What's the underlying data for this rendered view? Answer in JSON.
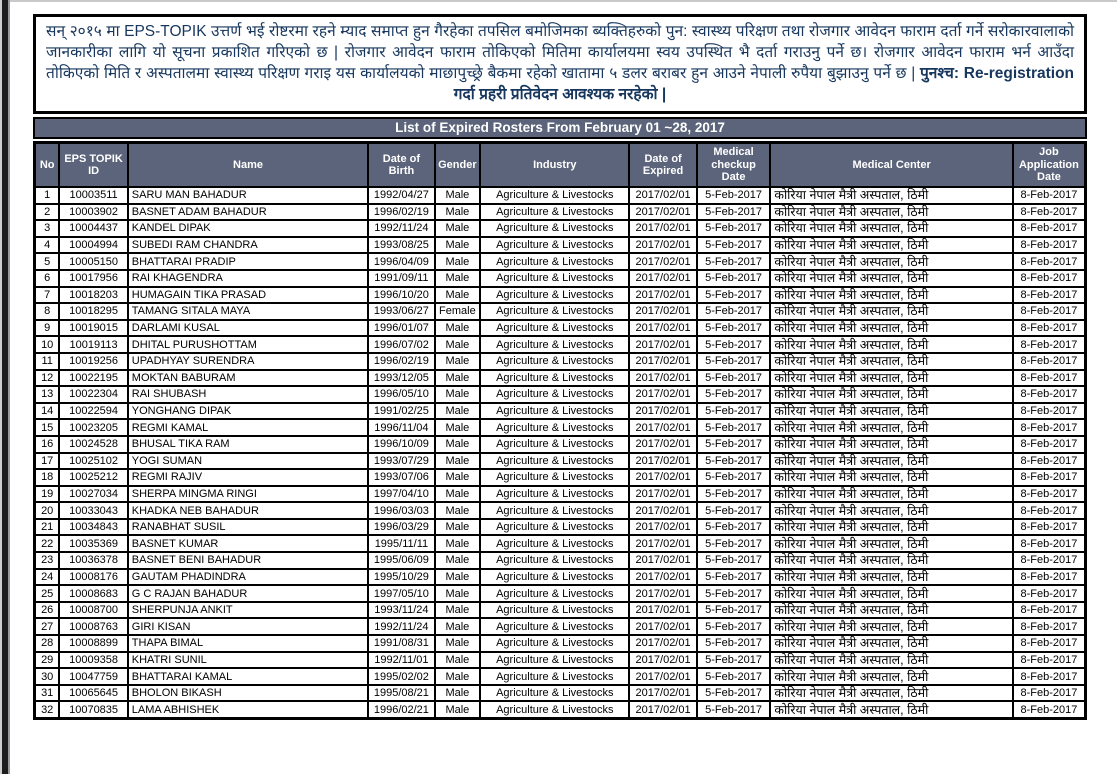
{
  "notice": {
    "body": "सन् २०१५ मा EPS-TOPIK उत्तर्ण भई रोष्टरमा रहने म्याद समाप्त हुन गैरहेका तपसिल बमोजिमका ब्यक्तिहरुको पुन: स्वास्थ्य परिक्षण तथा रोजगार आवेदन फाराम दर्ता गर्ने सरोकारवालाको जानकारीका लागि यो सूचना प्रकाशित गरिएको छ | रोजगार आवेदन फाराम तोकिएको मितिमा कार्यालयमा स्वय उपस्थित भै दर्ता गराउनु पर्ने छ। रोजगार आवेदन फाराम भर्न आउँदा तोकिएको मिति र अस्पतालमा स्वास्थ्य परिक्षण गराइ यस कार्यालयको माछापुच्छ्रे बैकमा रहेको खातामा ५ डलर बराबर हुन आउने नेपाली रुपैया बुझाउनु पर्ने छ |",
    "postscript": "पुनश्च: Re-registration गर्दा प्रहरी प्रतिवेदन आवश्यक नरहेको |"
  },
  "title": "List of Expired Rosters From February 01 ~28, 2017",
  "table": {
    "columns": [
      "No",
      "EPS TOPIK ID",
      "Name",
      "Date of Birth",
      "Gender",
      "Industry",
      "Date of Expired",
      "Medical checkup Date",
      "Medical Center",
      "Job Application Date"
    ],
    "rows": [
      [
        "1",
        "10003511",
        "SARU MAN BAHADUR",
        "1992/04/27",
        "Male",
        "Agriculture & Livestocks",
        "2017/02/01",
        "5-Feb-2017",
        "कोरिया नेपाल मैत्री अस्पताल, ठिमी",
        "8-Feb-2017"
      ],
      [
        "2",
        "10003902",
        "BASNET ADAM BAHADUR",
        "1996/02/19",
        "Male",
        "Agriculture & Livestocks",
        "2017/02/01",
        "5-Feb-2017",
        "कोरिया नेपाल मैत्री अस्पताल, ठिमी",
        "8-Feb-2017"
      ],
      [
        "3",
        "10004437",
        "KANDEL DIPAK",
        "1992/11/24",
        "Male",
        "Agriculture & Livestocks",
        "2017/02/01",
        "5-Feb-2017",
        "कोरिया नेपाल मैत्री अस्पताल, ठिमी",
        "8-Feb-2017"
      ],
      [
        "4",
        "10004994",
        "SUBEDI RAM CHANDRA",
        "1993/08/25",
        "Male",
        "Agriculture & Livestocks",
        "2017/02/01",
        "5-Feb-2017",
        "कोरिया नेपाल मैत्री अस्पताल, ठिमी",
        "8-Feb-2017"
      ],
      [
        "5",
        "10005150",
        "BHATTARAI PRADIP",
        "1996/04/09",
        "Male",
        "Agriculture & Livestocks",
        "2017/02/01",
        "5-Feb-2017",
        "कोरिया नेपाल मैत्री अस्पताल, ठिमी",
        "8-Feb-2017"
      ],
      [
        "6",
        "10017956",
        "RAI KHAGENDRA",
        "1991/09/11",
        "Male",
        "Agriculture & Livestocks",
        "2017/02/01",
        "5-Feb-2017",
        "कोरिया नेपाल मैत्री अस्पताल, ठिमी",
        "8-Feb-2017"
      ],
      [
        "7",
        "10018203",
        "HUMAGAIN TIKA PRASAD",
        "1996/10/20",
        "Male",
        "Agriculture & Livestocks",
        "2017/02/01",
        "5-Feb-2017",
        "कोरिया नेपाल मैत्री अस्पताल, ठिमी",
        "8-Feb-2017"
      ],
      [
        "8",
        "10018295",
        "TAMANG SITALA MAYA",
        "1993/06/27",
        "Female",
        "Agriculture & Livestocks",
        "2017/02/01",
        "5-Feb-2017",
        "कोरिया नेपाल मैत्री अस्पताल, ठिमी",
        "8-Feb-2017"
      ],
      [
        "9",
        "10019015",
        "DARLAMI KUSAL",
        "1996/01/07",
        "Male",
        "Agriculture & Livestocks",
        "2017/02/01",
        "5-Feb-2017",
        "कोरिया नेपाल मैत्री अस्पताल, ठिमी",
        "8-Feb-2017"
      ],
      [
        "10",
        "10019113",
        "DHITAL PURUSHOTTAM",
        "1996/07/02",
        "Male",
        "Agriculture & Livestocks",
        "2017/02/01",
        "5-Feb-2017",
        "कोरिया नेपाल मैत्री अस्पताल, ठिमी",
        "8-Feb-2017"
      ],
      [
        "11",
        "10019256",
        "UPADHYAY SURENDRA",
        "1996/02/19",
        "Male",
        "Agriculture & Livestocks",
        "2017/02/01",
        "5-Feb-2017",
        "कोरिया नेपाल मैत्री अस्पताल, ठिमी",
        "8-Feb-2017"
      ],
      [
        "12",
        "10022195",
        "MOKTAN BABURAM",
        "1993/12/05",
        "Male",
        "Agriculture & Livestocks",
        "2017/02/01",
        "5-Feb-2017",
        "कोरिया नेपाल मैत्री अस्पताल, ठिमी",
        "8-Feb-2017"
      ],
      [
        "13",
        "10022304",
        "RAI SHUBASH",
        "1996/05/10",
        "Male",
        "Agriculture & Livestocks",
        "2017/02/01",
        "5-Feb-2017",
        "कोरिया नेपाल मैत्री अस्पताल, ठिमी",
        "8-Feb-2017"
      ],
      [
        "14",
        "10022594",
        "YONGHANG DIPAK",
        "1991/02/25",
        "Male",
        "Agriculture & Livestocks",
        "2017/02/01",
        "5-Feb-2017",
        "कोरिया नेपाल मैत्री अस्पताल, ठिमी",
        "8-Feb-2017"
      ],
      [
        "15",
        "10023205",
        "REGMI KAMAL",
        "1996/11/04",
        "Male",
        "Agriculture & Livestocks",
        "2017/02/01",
        "5-Feb-2017",
        "कोरिया नेपाल मैत्री अस्पताल, ठिमी",
        "8-Feb-2017"
      ],
      [
        "16",
        "10024528",
        "BHUSAL TIKA RAM",
        "1996/10/09",
        "Male",
        "Agriculture & Livestocks",
        "2017/02/01",
        "5-Feb-2017",
        "कोरिया नेपाल मैत्री अस्पताल, ठिमी",
        "8-Feb-2017"
      ],
      [
        "17",
        "10025102",
        "YOGI SUMAN",
        "1993/07/29",
        "Male",
        "Agriculture & Livestocks",
        "2017/02/01",
        "5-Feb-2017",
        "कोरिया नेपाल मैत्री अस्पताल, ठिमी",
        "8-Feb-2017"
      ],
      [
        "18",
        "10025212",
        "REGMI RAJIV",
        "1993/07/06",
        "Male",
        "Agriculture & Livestocks",
        "2017/02/01",
        "5-Feb-2017",
        "कोरिया नेपाल मैत्री अस्पताल, ठिमी",
        "8-Feb-2017"
      ],
      [
        "19",
        "10027034",
        "SHERPA MINGMA RINGI",
        "1997/04/10",
        "Male",
        "Agriculture & Livestocks",
        "2017/02/01",
        "5-Feb-2017",
        "कोरिया नेपाल मैत्री अस्पताल, ठिमी",
        "8-Feb-2017"
      ],
      [
        "20",
        "10033043",
        "KHADKA NEB BAHADUR",
        "1996/03/03",
        "Male",
        "Agriculture & Livestocks",
        "2017/02/01",
        "5-Feb-2017",
        "कोरिया नेपाल मैत्री अस्पताल, ठिमी",
        "8-Feb-2017"
      ],
      [
        "21",
        "10034843",
        "RANABHAT SUSIL",
        "1996/03/29",
        "Male",
        "Agriculture & Livestocks",
        "2017/02/01",
        "5-Feb-2017",
        "कोरिया नेपाल मैत्री अस्पताल, ठिमी",
        "8-Feb-2017"
      ],
      [
        "22",
        "10035369",
        "BASNET KUMAR",
        "1995/11/11",
        "Male",
        "Agriculture & Livestocks",
        "2017/02/01",
        "5-Feb-2017",
        "कोरिया नेपाल मैत्री अस्पताल, ठिमी",
        "8-Feb-2017"
      ],
      [
        "23",
        "10036378",
        "BASNET BENI BAHADUR",
        "1995/06/09",
        "Male",
        "Agriculture & Livestocks",
        "2017/02/01",
        "5-Feb-2017",
        "कोरिया नेपाल मैत्री अस्पताल, ठिमी",
        "8-Feb-2017"
      ],
      [
        "24",
        "10008176",
        "GAUTAM PHADINDRA",
        "1995/10/29",
        "Male",
        "Agriculture & Livestocks",
        "2017/02/01",
        "5-Feb-2017",
        "कोरिया नेपाल मैत्री अस्पताल, ठिमी",
        "8-Feb-2017"
      ],
      [
        "25",
        "10008683",
        "G C RAJAN BAHADUR",
        "1997/05/10",
        "Male",
        "Agriculture & Livestocks",
        "2017/02/01",
        "5-Feb-2017",
        "कोरिया नेपाल मैत्री अस्पताल, ठिमी",
        "8-Feb-2017"
      ],
      [
        "26",
        "10008700",
        "SHERPUNJA ANKIT",
        "1993/11/24",
        "Male",
        "Agriculture & Livestocks",
        "2017/02/01",
        "5-Feb-2017",
        "कोरिया नेपाल मैत्री अस्पताल, ठिमी",
        "8-Feb-2017"
      ],
      [
        "27",
        "10008763",
        "GIRI KISAN",
        "1992/11/24",
        "Male",
        "Agriculture & Livestocks",
        "2017/02/01",
        "5-Feb-2017",
        "कोरिया नेपाल मैत्री अस्पताल, ठिमी",
        "8-Feb-2017"
      ],
      [
        "28",
        "10008899",
        "THAPA BIMAL",
        "1991/08/31",
        "Male",
        "Agriculture & Livestocks",
        "2017/02/01",
        "5-Feb-2017",
        "कोरिया नेपाल मैत्री अस्पताल, ठिमी",
        "8-Feb-2017"
      ],
      [
        "29",
        "10009358",
        "KHATRI SUNIL",
        "1992/11/01",
        "Male",
        "Agriculture & Livestocks",
        "2017/02/01",
        "5-Feb-2017",
        "कोरिया नेपाल मैत्री अस्पताल, ठिमी",
        "8-Feb-2017"
      ],
      [
        "30",
        "10047759",
        "BHATTARAI KAMAL",
        "1995/02/02",
        "Male",
        "Agriculture & Livestocks",
        "2017/02/01",
        "5-Feb-2017",
        "कोरिया नेपाल मैत्री अस्पताल, ठिमी",
        "8-Feb-2017"
      ],
      [
        "31",
        "10065645",
        "BHOLON BIKASH",
        "1995/08/21",
        "Male",
        "Agriculture & Livestocks",
        "2017/02/01",
        "5-Feb-2017",
        "कोरिया नेपाल मैत्री अस्पताल, ठिमी",
        "8-Feb-2017"
      ],
      [
        "32",
        "10070835",
        "LAMA ABHISHEK",
        "1996/02/21",
        "Male",
        "Agriculture & Livestocks",
        "2017/02/01",
        "5-Feb-2017",
        "कोरिया नेपाल मैत्री अस्पताल, ठिमी",
        "8-Feb-2017"
      ]
    ]
  },
  "colors": {
    "header_bg": "#5b647a",
    "notice_text": "#17375e",
    "grid": "#000000",
    "page_bg": "#ffffff"
  }
}
